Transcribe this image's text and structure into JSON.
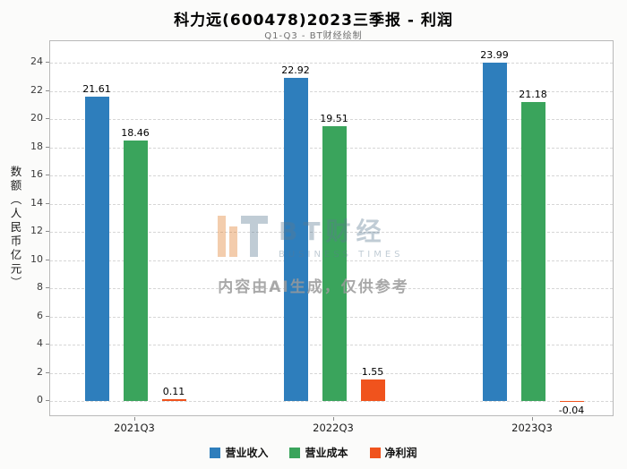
{
  "title": "科力远(600478)2023三季报 - 利润",
  "subtitle": "Q1-Q3 - BT财经绘制",
  "watermark": {
    "logo_text": "BT财经",
    "logo_sub": "BUSINESS TIMES",
    "disclaimer": "内容由AI生成，仅供参考"
  },
  "chart_data": {
    "type": "bar",
    "title": "科力远(600478)2023三季报 - 利润",
    "subtitle": "Q1-Q3 - BT财经绘制",
    "categories": [
      "2021Q3",
      "2022Q3",
      "2023Q3"
    ],
    "series": [
      {
        "name": "营业收入",
        "color": "#2e7ebc",
        "values": [
          21.61,
          22.92,
          23.99
        ]
      },
      {
        "name": "营业成本",
        "color": "#3aa45c",
        "values": [
          18.46,
          19.51,
          21.18
        ]
      },
      {
        "name": "净利润",
        "color": "#f0531d",
        "values": [
          0.11,
          1.55,
          -0.04
        ]
      }
    ],
    "xlabel": "",
    "ylabel": "数额（人民币亿元）",
    "ylim": [
      -1.1,
      25.5
    ],
    "yticks": [
      0,
      2,
      4,
      6,
      8,
      10,
      12,
      14,
      16,
      18,
      20,
      22,
      24
    ],
    "grid": "horizontal-dashed",
    "legend_position": "bottom"
  }
}
